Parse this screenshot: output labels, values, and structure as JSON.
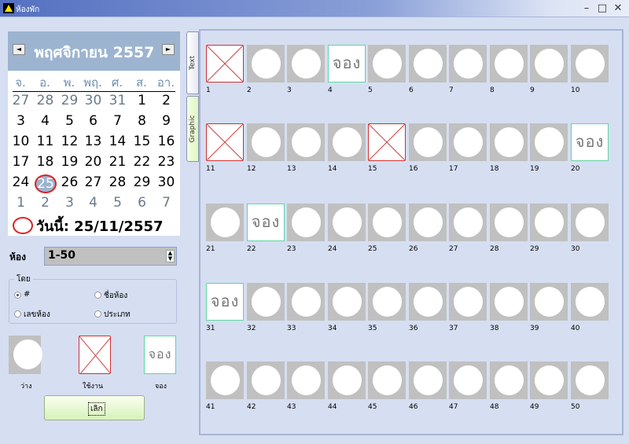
{
  "window": {
    "title": "ห้องพัก",
    "minimize": "–",
    "maximize": "□",
    "close": "✕"
  },
  "calendar": {
    "month_label": "พฤศจิกายน 2557",
    "prev": "◄",
    "next": "►",
    "day_names": [
      "จ.",
      "อ.",
      "พ.",
      "พฤ.",
      "ศ.",
      "ส.",
      "อา."
    ],
    "weeks": [
      [
        {
          "d": "27",
          "other": true
        },
        {
          "d": "28",
          "other": true
        },
        {
          "d": "29",
          "other": true
        },
        {
          "d": "30",
          "other": true
        },
        {
          "d": "31",
          "other": true
        },
        {
          "d": "1"
        },
        {
          "d": "2"
        }
      ],
      [
        {
          "d": "3"
        },
        {
          "d": "4"
        },
        {
          "d": "5"
        },
        {
          "d": "6"
        },
        {
          "d": "7"
        },
        {
          "d": "8"
        },
        {
          "d": "9"
        }
      ],
      [
        {
          "d": "10"
        },
        {
          "d": "11"
        },
        {
          "d": "12"
        },
        {
          "d": "13"
        },
        {
          "d": "14"
        },
        {
          "d": "15"
        },
        {
          "d": "16"
        }
      ],
      [
        {
          "d": "17"
        },
        {
          "d": "18"
        },
        {
          "d": "19"
        },
        {
          "d": "20"
        },
        {
          "d": "21"
        },
        {
          "d": "22"
        },
        {
          "d": "23"
        }
      ],
      [
        {
          "d": "24"
        },
        {
          "d": "25",
          "selected": true
        },
        {
          "d": "26"
        },
        {
          "d": "27"
        },
        {
          "d": "28"
        },
        {
          "d": "29"
        },
        {
          "d": "30"
        }
      ],
      [
        {
          "d": "1",
          "other": true
        },
        {
          "d": "2",
          "other": true
        },
        {
          "d": "3",
          "other": true
        },
        {
          "d": "4",
          "other": true
        },
        {
          "d": "5",
          "other": true
        },
        {
          "d": "6",
          "other": true
        },
        {
          "d": "7",
          "other": true
        }
      ]
    ],
    "today_label": "วันนี้: 25/11/2557"
  },
  "room_filter": {
    "label": "ห้อง",
    "value": "1-50"
  },
  "sort_group": {
    "legend": "โดย",
    "options": [
      {
        "label": "#",
        "checked": true
      },
      {
        "label": "ชื่อห้อง",
        "checked": false
      },
      {
        "label": "เลขห้อง",
        "checked": false
      },
      {
        "label": "ประเภท",
        "checked": false
      }
    ]
  },
  "legend": {
    "free": "ว่าง",
    "used": "ใช้งาน",
    "reserved": "จอง"
  },
  "cancel_button": "เลิก",
  "tabs": [
    {
      "label": "Text",
      "active": false
    },
    {
      "label": "Graphic",
      "active": true
    }
  ],
  "reserved_text": "จอง",
  "rooms": [
    {
      "n": "1",
      "s": "used"
    },
    {
      "n": "2",
      "s": "free"
    },
    {
      "n": "3",
      "s": "free"
    },
    {
      "n": "4",
      "s": "reserved"
    },
    {
      "n": "5",
      "s": "free"
    },
    {
      "n": "6",
      "s": "free"
    },
    {
      "n": "7",
      "s": "free"
    },
    {
      "n": "8",
      "s": "free"
    },
    {
      "n": "9",
      "s": "free"
    },
    {
      "n": "10",
      "s": "free"
    },
    {
      "n": "11",
      "s": "used"
    },
    {
      "n": "12",
      "s": "free"
    },
    {
      "n": "13",
      "s": "free"
    },
    {
      "n": "14",
      "s": "free"
    },
    {
      "n": "15",
      "s": "used"
    },
    {
      "n": "16",
      "s": "free"
    },
    {
      "n": "17",
      "s": "free"
    },
    {
      "n": "18",
      "s": "free"
    },
    {
      "n": "19",
      "s": "free"
    },
    {
      "n": "20",
      "s": "reserved"
    },
    {
      "n": "21",
      "s": "free"
    },
    {
      "n": "22",
      "s": "reserved"
    },
    {
      "n": "23",
      "s": "free"
    },
    {
      "n": "24",
      "s": "free"
    },
    {
      "n": "25",
      "s": "free"
    },
    {
      "n": "26",
      "s": "free"
    },
    {
      "n": "27",
      "s": "free"
    },
    {
      "n": "28",
      "s": "free"
    },
    {
      "n": "29",
      "s": "free"
    },
    {
      "n": "30",
      "s": "free"
    },
    {
      "n": "31",
      "s": "reserved"
    },
    {
      "n": "32",
      "s": "free"
    },
    {
      "n": "33",
      "s": "free"
    },
    {
      "n": "34",
      "s": "free"
    },
    {
      "n": "35",
      "s": "free"
    },
    {
      "n": "36",
      "s": "free"
    },
    {
      "n": "37",
      "s": "free"
    },
    {
      "n": "38",
      "s": "free"
    },
    {
      "n": "39",
      "s": "free"
    },
    {
      "n": "40",
      "s": "free"
    },
    {
      "n": "41",
      "s": "free"
    },
    {
      "n": "42",
      "s": "free"
    },
    {
      "n": "43",
      "s": "free"
    },
    {
      "n": "44",
      "s": "free"
    },
    {
      "n": "45",
      "s": "free"
    },
    {
      "n": "46",
      "s": "free"
    },
    {
      "n": "47",
      "s": "free"
    },
    {
      "n": "48",
      "s": "free"
    },
    {
      "n": "49",
      "s": "free"
    },
    {
      "n": "50",
      "s": "free"
    }
  ]
}
